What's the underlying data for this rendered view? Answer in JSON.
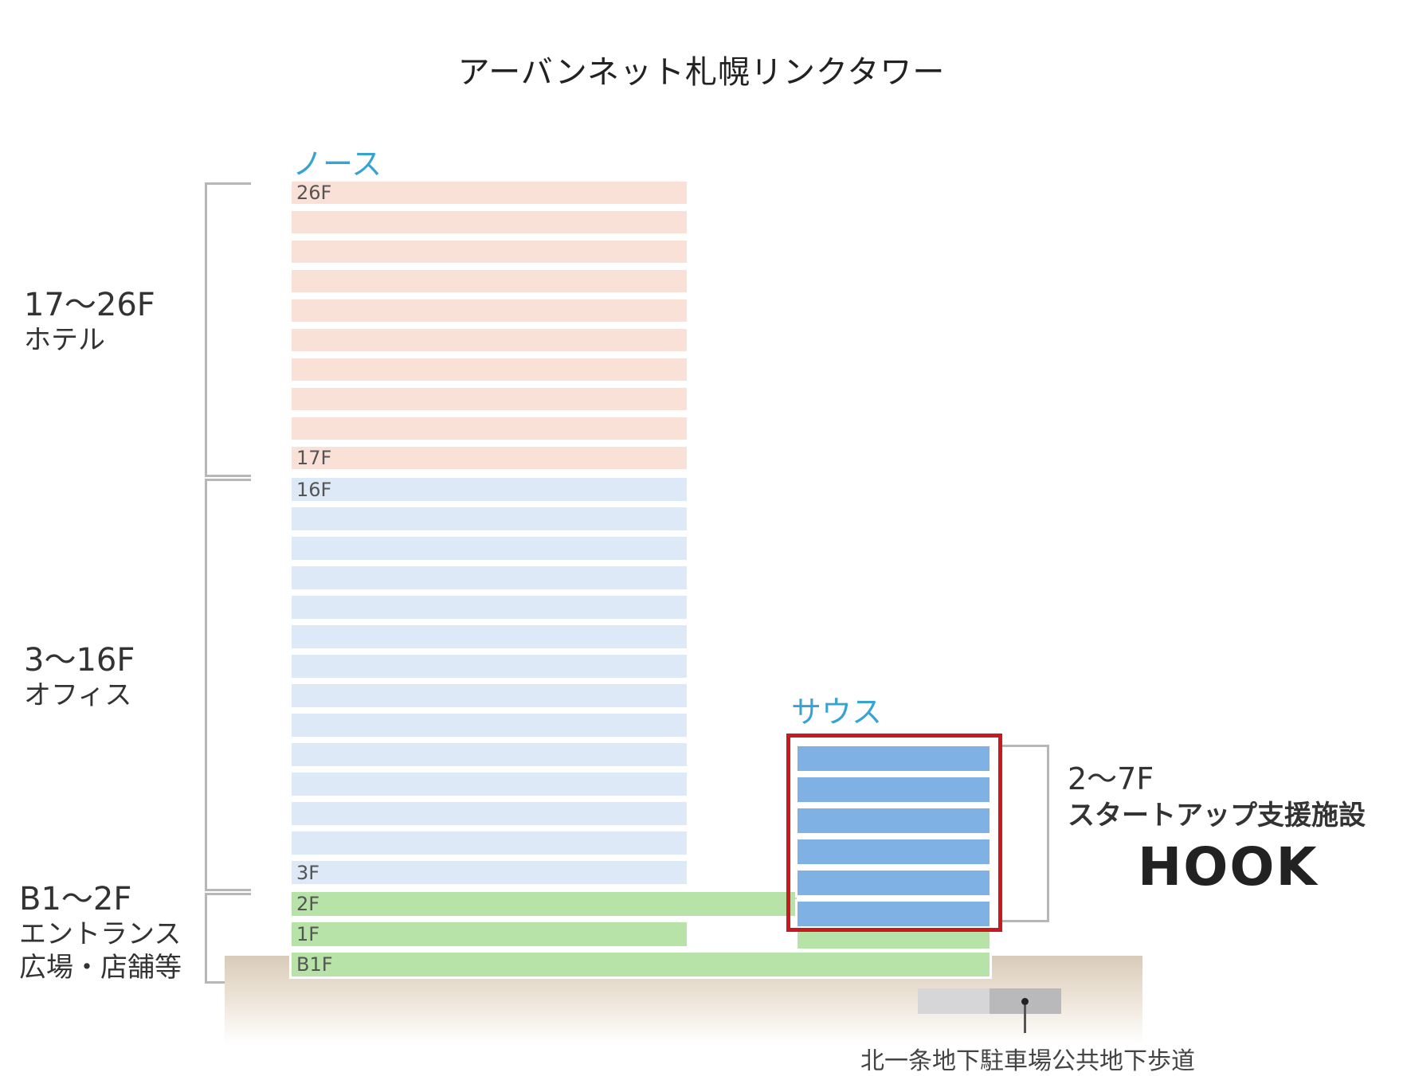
{
  "title": "アーバンネット札幌リンクタワー",
  "north": {
    "name": "ノース",
    "labels": {
      "f26": "26F",
      "f17": "17F",
      "f16": "16F",
      "f3": "3F",
      "f2": "2F",
      "f1": "1F",
      "b1": "B1F"
    }
  },
  "south": {
    "name": "サウス"
  },
  "groups": {
    "hotel": {
      "range": "17～26F",
      "use": "ホテル"
    },
    "office": {
      "range": "3～16F",
      "use": "オフィス"
    },
    "entrance": {
      "range": "B1～2F",
      "use1": "エントランス",
      "use2": "広場・店舗等"
    },
    "startup": {
      "range": "2～7F",
      "use": "スタートアップ支援施設",
      "brand": "HOOK"
    }
  },
  "walkway": "北一条地下駐車場公共地下歩道",
  "colors": {
    "hotel": "#fae1d8",
    "office": "#dde9f7",
    "entrance": "#b7e3a8",
    "startup": "#80b1e4",
    "highlight": "#c8191f",
    "tower_label": "#37a3d5"
  }
}
